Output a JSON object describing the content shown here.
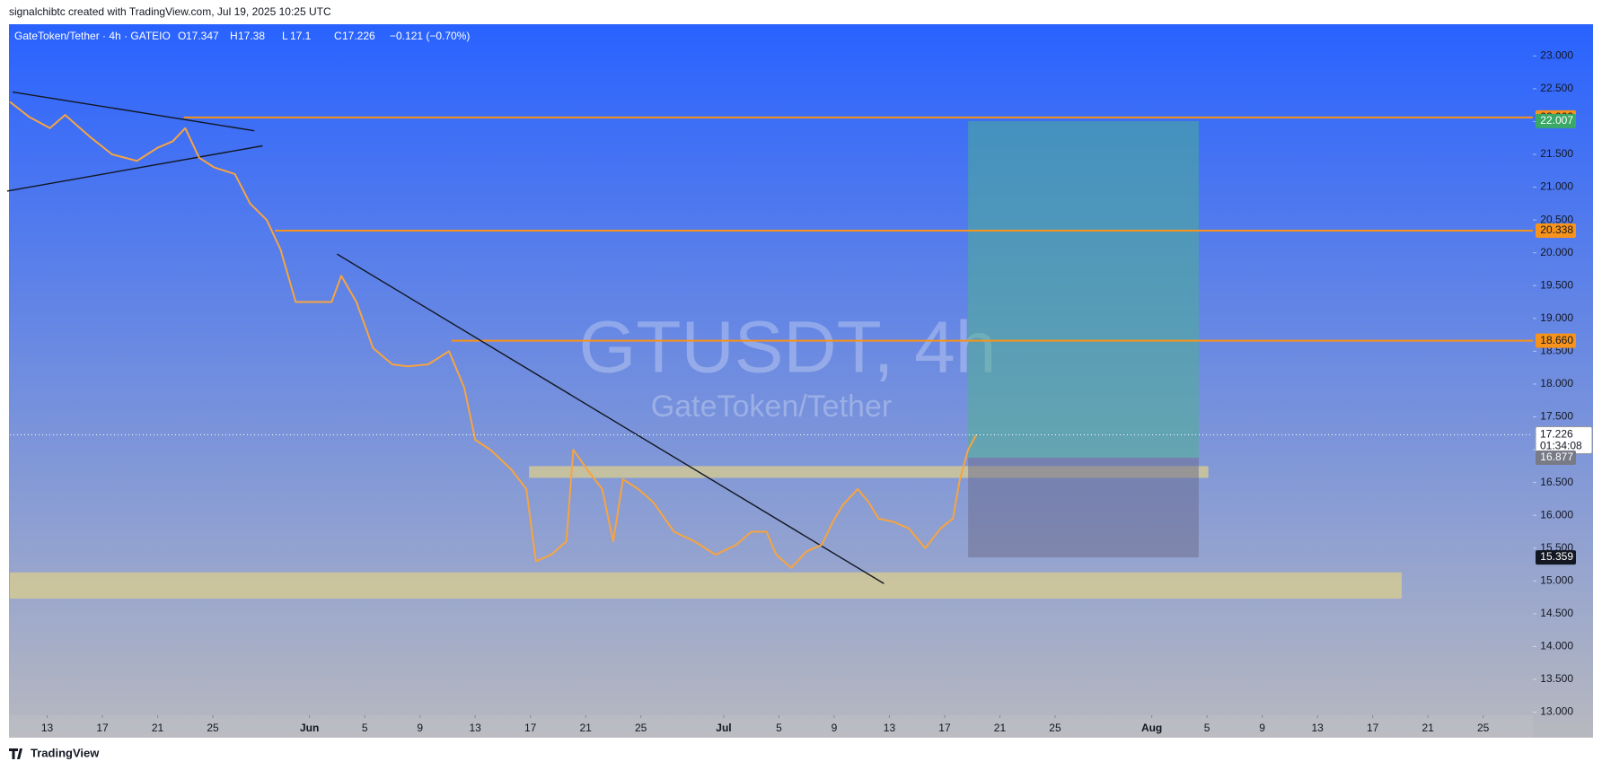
{
  "chart_data": {
    "type": "line",
    "credit": "signalchibtc created with TradingView.com, Jul 19, 2025 10:25 UTC",
    "symbol": "GateToken/Tether · 4h · GATEIO",
    "ohlc": [
      {
        "key": "O",
        "value": 17.347
      },
      {
        "key": "H",
        "value": 17.38
      },
      {
        "key": "L",
        "value": 17.1
      },
      {
        "key": "C",
        "value": 17.226
      }
    ],
    "change": "−0.121 (−0.70%)",
    "watermark": "GTUSDT, 4h",
    "watermark_sub": "GateToken/Tether",
    "brand": "TradingView",
    "countdown": "01:34:08",
    "xlim": [
      130.3,
      240.6
    ],
    "ylim": [
      12.953,
      23.483
    ],
    "xticks": [
      {
        "value": 133,
        "label": "13"
      },
      {
        "value": 137,
        "label": "17"
      },
      {
        "value": 141,
        "label": "21"
      },
      {
        "value": 145,
        "label": "25"
      },
      {
        "value": 152,
        "label": "Jun"
      },
      {
        "value": 156,
        "label": "5"
      },
      {
        "value": 160,
        "label": "9"
      },
      {
        "value": 164,
        "label": "13"
      },
      {
        "value": 168,
        "label": "17"
      },
      {
        "value": 172,
        "label": "21"
      },
      {
        "value": 176,
        "label": "25"
      },
      {
        "value": 182,
        "label": "Jul"
      },
      {
        "value": 186,
        "label": "5"
      },
      {
        "value": 190,
        "label": "9"
      },
      {
        "value": 194,
        "label": "13"
      },
      {
        "value": 198,
        "label": "17"
      },
      {
        "value": 202,
        "label": "21"
      },
      {
        "value": 206,
        "label": "25"
      },
      {
        "value": 213,
        "label": "Aug"
      },
      {
        "value": 217,
        "label": "5"
      },
      {
        "value": 221,
        "label": "9"
      },
      {
        "value": 225,
        "label": "13"
      },
      {
        "value": 229,
        "label": "17"
      },
      {
        "value": 233,
        "label": "21"
      },
      {
        "value": 237,
        "label": "25"
      }
    ],
    "yticks": [
      {
        "value": 13,
        "label": "13.000"
      },
      {
        "value": 13.5,
        "label": "13.500"
      },
      {
        "value": 14,
        "label": "14.000"
      },
      {
        "value": 14.5,
        "label": "14.500"
      },
      {
        "value": 15,
        "label": "15.000"
      },
      {
        "value": 15.5,
        "label": "15.500"
      },
      {
        "value": 16,
        "label": "16.000"
      },
      {
        "value": 16.5,
        "label": "16.500"
      },
      {
        "value": 17,
        "label": "17.000"
      },
      {
        "value": 17.5,
        "label": "17.500"
      },
      {
        "value": 18,
        "label": "18.000"
      },
      {
        "value": 18.5,
        "label": "18.500"
      },
      {
        "value": 19,
        "label": "19.000"
      },
      {
        "value": 19.5,
        "label": "19.500"
      },
      {
        "value": 20,
        "label": "20.000"
      },
      {
        "value": 20.5,
        "label": "20.500"
      },
      {
        "value": 21,
        "label": "21.000"
      },
      {
        "value": 21.5,
        "label": "21.500"
      },
      {
        "value": 22,
        "label": "22.000"
      },
      {
        "value": 22.5,
        "label": "22.500"
      },
      {
        "value": 23,
        "label": "23.000"
      }
    ],
    "series": [
      {
        "color": "#f7a440",
        "x": [
          130.3,
          131.7,
          133.2,
          134.3,
          136.2,
          137.7,
          139.5,
          141.0,
          142.1,
          143.0,
          144.0,
          145.1,
          146.6,
          147.7,
          148.9,
          149.9,
          151.0,
          152.5,
          153.6,
          154.3,
          155.4,
          156.6,
          158.0,
          159.1,
          160.6,
          162.1,
          163.2,
          164.0,
          165.1,
          166.6,
          167.7,
          168.4,
          169.5,
          170.6,
          171.1,
          172.1,
          173.2,
          174.0,
          174.7,
          175.8,
          176.9,
          178.4,
          179.9,
          181.4,
          182.9,
          184.0,
          185.1,
          185.8,
          186.9,
          188.0,
          189.1,
          189.9,
          190.6,
          191.7,
          192.5,
          193.2,
          194.3,
          195.4,
          196.6,
          197.7,
          198.6,
          199.1,
          199.7,
          200.3
        ],
        "values": [
          22.3,
          22.07,
          21.9,
          22.1,
          21.75,
          21.5,
          21.4,
          21.6,
          21.7,
          21.9,
          21.45,
          21.3,
          21.2,
          20.75,
          20.5,
          20.05,
          19.25,
          19.25,
          19.25,
          19.65,
          19.25,
          18.55,
          18.3,
          18.27,
          18.3,
          18.5,
          17.95,
          17.15,
          17.0,
          16.7,
          16.4,
          15.3,
          15.4,
          15.6,
          17.0,
          16.7,
          16.4,
          15.6,
          16.55,
          16.4,
          16.2,
          15.75,
          15.6,
          15.4,
          15.55,
          15.75,
          15.75,
          15.4,
          15.2,
          15.45,
          15.55,
          15.9,
          16.15,
          16.4,
          16.2,
          15.95,
          15.9,
          15.8,
          15.5,
          15.8,
          15.95,
          16.55,
          17.0,
          17.23
        ]
      }
    ],
    "levels": [
      {
        "start": 142.9,
        "price": 22.062,
        "color": "#f7931a"
      },
      {
        "start": 149.5,
        "price": 20.338,
        "color": "#f7931a"
      },
      {
        "start": 162.3,
        "price": {
          "value": 18.66,
          "label": "18.660"
        },
        "color": "#f7931a"
      }
    ],
    "zones": [
      {
        "x": [
          167.9,
          217.1
        ],
        "y": [
          16.57,
          16.75
        ]
      },
      {
        "x": [
          130.3,
          231.1
        ],
        "y": [
          14.73,
          15.13
        ]
      }
    ],
    "trendlines": [
      {
        "x": [
          130.5,
          148.0
        ],
        "y": [
          22.45,
          21.86
        ]
      },
      {
        "x": [
          130.1,
          148.6
        ],
        "y": [
          20.94,
          21.63
        ]
      },
      {
        "x": [
          154.0,
          193.6
        ],
        "y": [
          19.98,
          14.96
        ]
      }
    ],
    "position": {
      "x": [
        199.7,
        216.4
      ],
      "target": 22.007,
      "entry": 16.877,
      "stop": 15.359
    }
  }
}
